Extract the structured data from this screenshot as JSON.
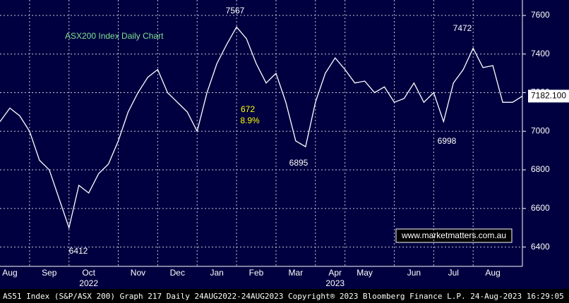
{
  "chart_data": {
    "type": "line",
    "title": "ASX200 Index Daily Chart",
    "footer": "AS51 Index (S&P/ASX 200) Graph 217  Daily 24AUG2022-24AUG2023  Copyright® 2023 Bloomberg Finance L.P.  24-Aug-2023 16:29:05",
    "watermark": "www.marketmatters.com.au",
    "categories": [
      null,
      "Aug",
      null,
      null,
      null,
      "Sep",
      null,
      null,
      null,
      "Oct",
      null,
      null,
      null,
      null,
      "Nov",
      null,
      null,
      null,
      "Dec",
      null,
      null,
      null,
      "Jan",
      null,
      null,
      null,
      "Feb",
      null,
      null,
      null,
      "Mar",
      null,
      null,
      null,
      "Apr",
      null,
      null,
      "May",
      null,
      null,
      null,
      null,
      "Jun",
      null,
      null,
      null,
      "Jul",
      null,
      null,
      null,
      "Aug",
      null,
      null,
      null
    ],
    "years": [
      {
        "index": 9,
        "label": "2022"
      },
      {
        "index": 34,
        "label": "2023"
      }
    ],
    "series": [
      {
        "name": "AS51 Index",
        "color": "#ffffff",
        "values": [
          7050,
          7120,
          7080,
          7000,
          6850,
          6800,
          6650,
          6500,
          6720,
          6680,
          6780,
          6830,
          6950,
          7100,
          7200,
          7280,
          7320,
          7200,
          7150,
          7100,
          7000,
          7200,
          7350,
          7450,
          7540,
          7480,
          7350,
          7250,
          7300,
          7150,
          6950,
          6920,
          7150,
          7300,
          7380,
          7320,
          7250,
          7260,
          7200,
          7230,
          7150,
          7170,
          7250,
          7150,
          7200,
          7050,
          7250,
          7320,
          7430,
          7330,
          7340,
          7150,
          7150,
          7182
        ]
      }
    ],
    "last_value": {
      "value": 7182.1,
      "label": "7182.100"
    },
    "annotations": [
      "7567",
      "7472",
      "6412",
      "6895",
      "6998",
      "672",
      "8.9%"
    ],
    "ylim": [
      6300,
      7680
    ],
    "yticks": [
      6400,
      6600,
      6800,
      7000,
      7200,
      7400,
      7600
    ],
    "grid": true
  }
}
